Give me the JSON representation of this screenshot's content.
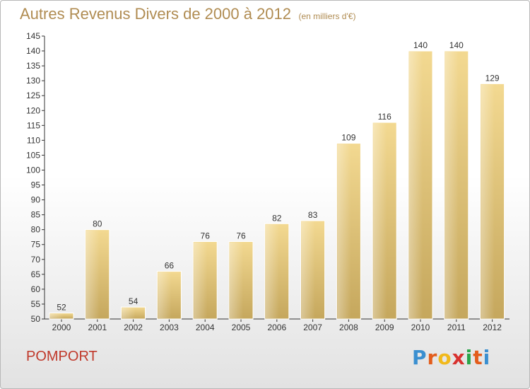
{
  "chart_data": {
    "type": "bar",
    "title": "Autres Revenus Divers de 2000 à 2012",
    "subtitle": "(en milliers d'€)",
    "categories": [
      "2000",
      "2001",
      "2002",
      "2003",
      "2004",
      "2005",
      "2006",
      "2007",
      "2008",
      "2009",
      "2010",
      "2011",
      "2012"
    ],
    "values": [
      52,
      80,
      54,
      66,
      76,
      76,
      82,
      83,
      109,
      116,
      140,
      140,
      129
    ],
    "ylim": [
      50,
      145
    ],
    "yticks": [
      50,
      55,
      60,
      65,
      70,
      75,
      80,
      85,
      90,
      95,
      100,
      105,
      110,
      115,
      120,
      125,
      130,
      135,
      140,
      145
    ],
    "grid": false,
    "bar_color": "#e6c87e",
    "xlabel": "",
    "ylabel": ""
  },
  "footer": {
    "town": "POMPORT",
    "brand_letters": [
      "P",
      "r",
      "o",
      "x",
      "i",
      "t",
      "i"
    ]
  }
}
